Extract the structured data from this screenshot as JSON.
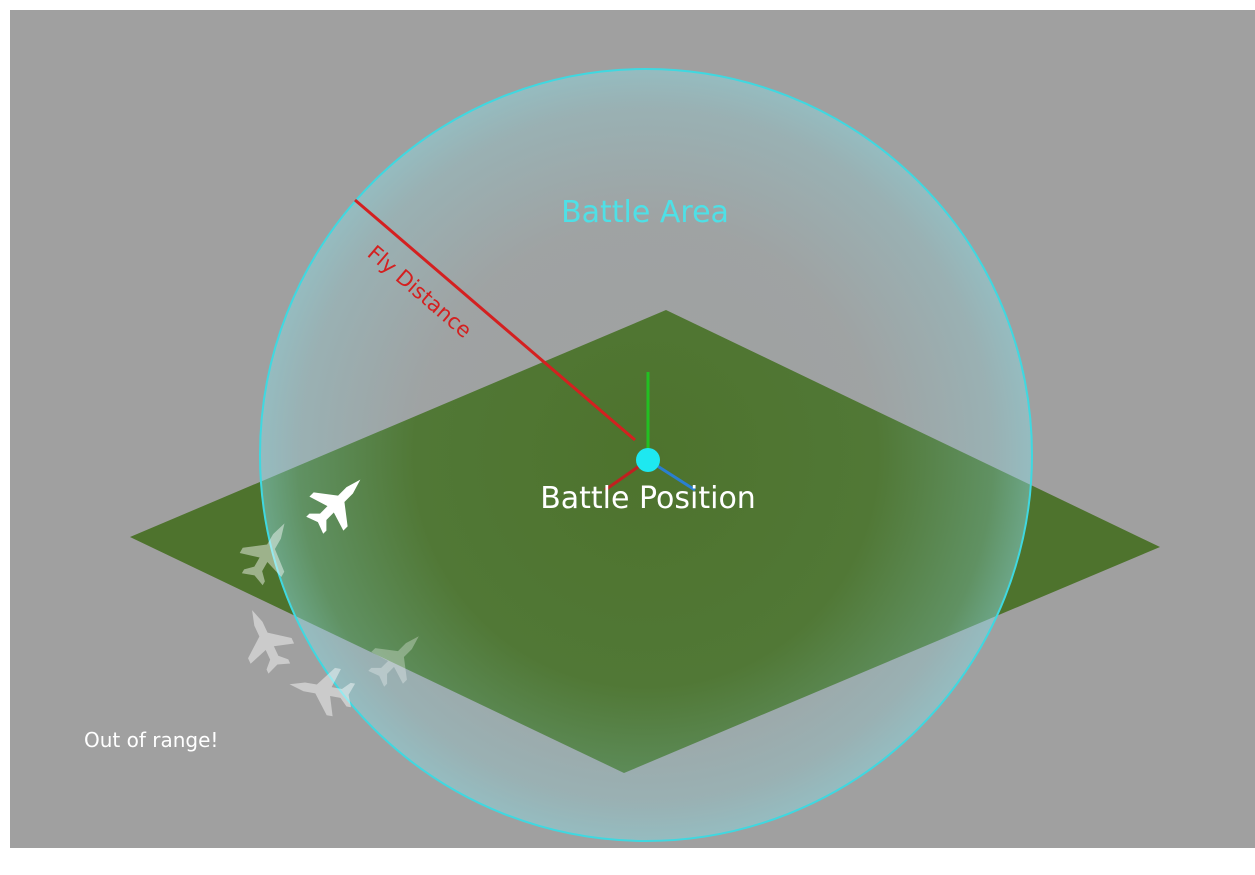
{
  "labels": {
    "battle_area": "Battle Area",
    "fly_distance": "Fly Distance",
    "battle_position": "Battle Position",
    "out_of_range": "Out of range!"
  }
}
